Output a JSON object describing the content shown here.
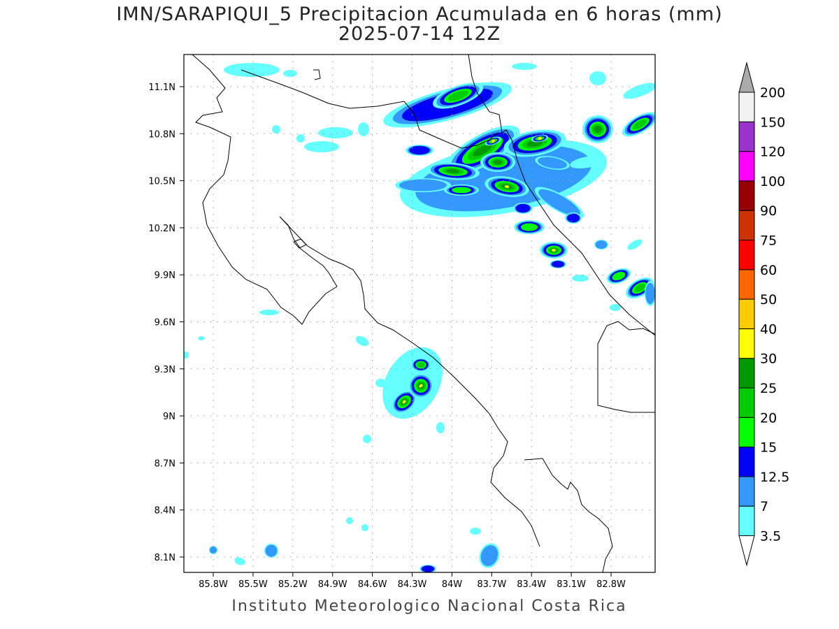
{
  "title": {
    "line1": "IMN/SARAPIQUI_5 Precipitacion Acumulada en 6 horas (mm)",
    "line2": "2025-07-14 12Z"
  },
  "footer": "Instituto Meteorologico Nacional Costa Rica",
  "map": {
    "lon_labels": [
      "85.8W",
      "85.5W",
      "85.2W",
      "84.9W",
      "84.6W",
      "84.3W",
      "84W",
      "83.7W",
      "83.4W",
      "83.1W",
      "82.8W"
    ],
    "lat_labels": [
      "11.1N",
      "10.8N",
      "10.5N",
      "10.2N",
      "9.9N",
      "9.6N",
      "9.3N",
      "9N",
      "8.7N",
      "8.4N",
      "8.1N"
    ],
    "lon_range": [
      "86W",
      "82.5W"
    ],
    "lat_range": [
      "8N",
      "11.3N"
    ],
    "grid": "dotted"
  },
  "colorbar": {
    "labels": [
      "3.5",
      "7",
      "12.5",
      "15",
      "20",
      "25",
      "30",
      "40",
      "50",
      "60",
      "75",
      "90",
      "100",
      "120",
      "150",
      "200"
    ],
    "colors": [
      "#66ffff",
      "#3399ff",
      "#0000ff",
      "#00ff00",
      "#00cc00",
      "#009900",
      "#ffff00",
      "#ffcc00",
      "#ff6600",
      "#ff0000",
      "#cc3300",
      "#990000",
      "#ff00ff",
      "#9933cc",
      "#f2f2f2"
    ],
    "over_color": "#aaaaaa",
    "under_color": "#ffffff"
  }
}
